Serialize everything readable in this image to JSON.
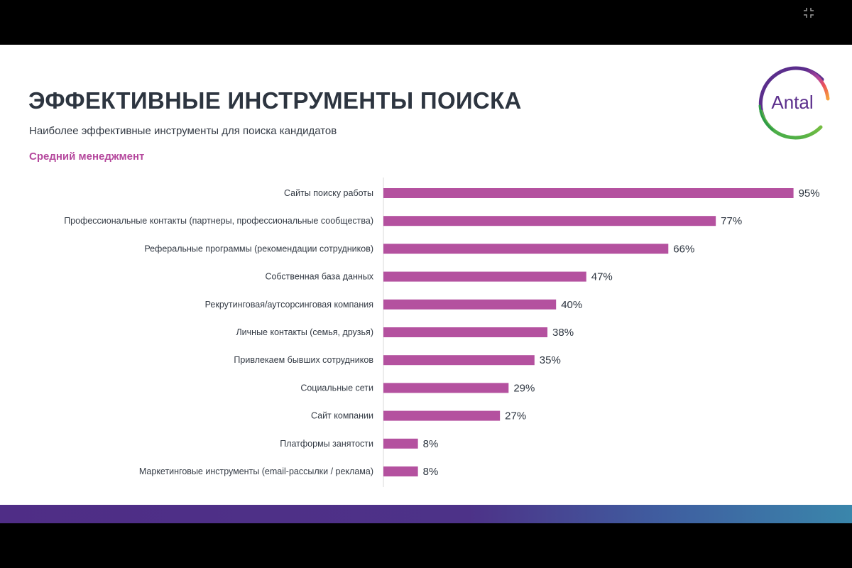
{
  "slide": {
    "title": "ЭФФЕКТИВНЫЕ ИНСТРУМЕНТЫ ПОИСКА",
    "subtitle": "Наиболее эффективные инструменты для поиска кандидатов",
    "section_label": "Средний менеджмент",
    "logo_text": "Antal"
  },
  "colors": {
    "bar": "#b4519f",
    "section_label": "#b5489d",
    "title": "#2d3540",
    "band_start": "#4f2d86",
    "band_end": "#3a86ab"
  },
  "icons": {
    "fullscreen": "exit-fullscreen-icon"
  },
  "chart_data": {
    "type": "bar",
    "orientation": "horizontal",
    "title": "Средний менеджмент",
    "xlim": [
      0,
      100
    ],
    "unit": "%",
    "grid": false,
    "legend": "none",
    "categories": [
      "Сайты поиску работы",
      "Профессиональные контакты (партнеры, профессиональные сообщества)",
      "Реферальные программы (рекомендации сотрудников)",
      "Собственная база данных",
      "Рекрутинговая/аутсорсинговая компания",
      "Личные контакты (семья, друзья)",
      "Привлекаем бывших сотрудников",
      "Социальные сети",
      "Сайт компании",
      "Платформы занятости",
      "Маркетинговые инструменты (email-рассылки / реклама)"
    ],
    "values": [
      95,
      77,
      66,
      47,
      40,
      38,
      35,
      29,
      27,
      8,
      8
    ],
    "value_labels": [
      "95%",
      "77%",
      "66%",
      "47%",
      "40%",
      "38%",
      "35%",
      "29%",
      "27%",
      "8%",
      "8%"
    ]
  }
}
